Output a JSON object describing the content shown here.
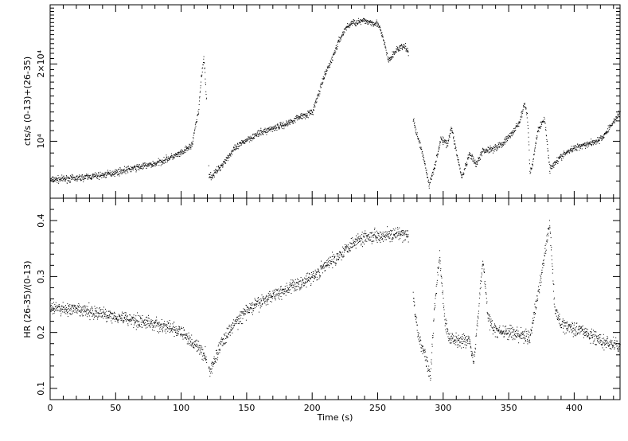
{
  "chart_data": [
    {
      "type": "scatter",
      "panel": "top",
      "ylabel": "cts/s (0-13)+(26-35)",
      "xlim": [
        0,
        435
      ],
      "yscale": "log",
      "ylim": [
        6000,
        34000
      ],
      "yticks": [
        {
          "value": 10000,
          "label": "10⁴"
        },
        {
          "value": 20000,
          "label": "2×10⁴"
        }
      ],
      "series": [
        {
          "points_keyframes": [
            [
              0,
              7100
            ],
            [
              20,
              7200
            ],
            [
              40,
              7400
            ],
            [
              60,
              7800
            ],
            [
              80,
              8200
            ],
            [
              100,
              9000
            ],
            [
              108,
              9700
            ],
            [
              113,
              13000
            ],
            [
              115,
              17500
            ],
            [
              117,
              21000
            ],
            [
              119,
              15000
            ],
            [
              121,
              7400
            ],
            [
              123,
              7300
            ],
            [
              130,
              8000
            ],
            [
              140,
              9300
            ],
            [
              150,
              10200
            ],
            [
              160,
              10800
            ],
            [
              170,
              11300
            ],
            [
              180,
              11700
            ],
            [
              190,
              12500
            ],
            [
              200,
              13000
            ],
            [
              205,
              15500
            ],
            [
              210,
              18500
            ],
            [
              215,
              21000
            ],
            [
              220,
              24500
            ],
            [
              225,
              27500
            ],
            [
              230,
              29000
            ],
            [
              240,
              29500
            ],
            [
              250,
              28800
            ],
            [
              255,
              24000
            ],
            [
              258,
              20500
            ],
            [
              262,
              22000
            ],
            [
              265,
              23000
            ],
            [
              270,
              23500
            ],
            [
              273,
              22500
            ],
            [
              277,
              12000
            ],
            [
              280,
              10500
            ],
            [
              284,
              9000
            ],
            [
              289,
              6700
            ],
            [
              294,
              8300
            ],
            [
              298,
              10200
            ],
            [
              303,
              9800
            ],
            [
              306,
              11300
            ],
            [
              310,
              9000
            ],
            [
              314,
              7200
            ],
            [
              320,
              8900
            ],
            [
              325,
              8100
            ],
            [
              330,
              9200
            ],
            [
              338,
              9400
            ],
            [
              345,
              9800
            ],
            [
              352,
              10700
            ],
            [
              358,
              11900
            ],
            [
              362,
              14000
            ],
            [
              364,
              12500
            ],
            [
              366,
              7600
            ],
            [
              368,
              8200
            ],
            [
              372,
              11000
            ],
            [
              377,
              12300
            ],
            [
              381,
              7800
            ],
            [
              385,
              8300
            ],
            [
              393,
              9000
            ],
            [
              403,
              9600
            ],
            [
              413,
              9900
            ],
            [
              420,
              10200
            ],
            [
              425,
              11000
            ],
            [
              430,
              12000
            ],
            [
              435,
              13000
            ]
          ]
        }
      ]
    },
    {
      "type": "scatter",
      "panel": "bottom",
      "ylabel": "HR (26-35)/(0-13)",
      "xlabel": "Time (s)",
      "xlim": [
        0,
        435
      ],
      "ylim": [
        0.08,
        0.44
      ],
      "xticks": [
        0,
        50,
        100,
        150,
        200,
        250,
        300,
        350,
        400
      ],
      "yticks": [
        0.1,
        0.2,
        0.3,
        0.4
      ],
      "series": [
        {
          "points_keyframes": [
            [
              0,
              0.245
            ],
            [
              30,
              0.238
            ],
            [
              60,
              0.225
            ],
            [
              90,
              0.21
            ],
            [
              100,
              0.2
            ],
            [
              110,
              0.18
            ],
            [
              118,
              0.16
            ],
            [
              122,
              0.13
            ],
            [
              125,
              0.15
            ],
            [
              130,
              0.18
            ],
            [
              140,
              0.215
            ],
            [
              150,
              0.24
            ],
            [
              170,
              0.268
            ],
            [
              190,
              0.288
            ],
            [
              200,
              0.3
            ],
            [
              210,
              0.32
            ],
            [
              220,
              0.338
            ],
            [
              230,
              0.36
            ],
            [
              240,
              0.372
            ],
            [
              255,
              0.375
            ],
            [
              273,
              0.375
            ],
            [
              278,
              0.24
            ],
            [
              281,
              0.19
            ],
            [
              286,
              0.16
            ],
            [
              290,
              0.12
            ],
            [
              293,
              0.24
            ],
            [
              297,
              0.34
            ],
            [
              301,
              0.22
            ],
            [
              305,
              0.19
            ],
            [
              320,
              0.185
            ],
            [
              323,
              0.15
            ],
            [
              326,
              0.22
            ],
            [
              330,
              0.33
            ],
            [
              334,
              0.23
            ],
            [
              338,
              0.205
            ],
            [
              350,
              0.2
            ],
            [
              362,
              0.195
            ],
            [
              366,
              0.19
            ],
            [
              369,
              0.23
            ],
            [
              373,
              0.28
            ],
            [
              377,
              0.34
            ],
            [
              381,
              0.395
            ],
            [
              385,
              0.24
            ],
            [
              390,
              0.215
            ],
            [
              405,
              0.205
            ],
            [
              420,
              0.185
            ],
            [
              435,
              0.175
            ]
          ]
        }
      ]
    }
  ]
}
